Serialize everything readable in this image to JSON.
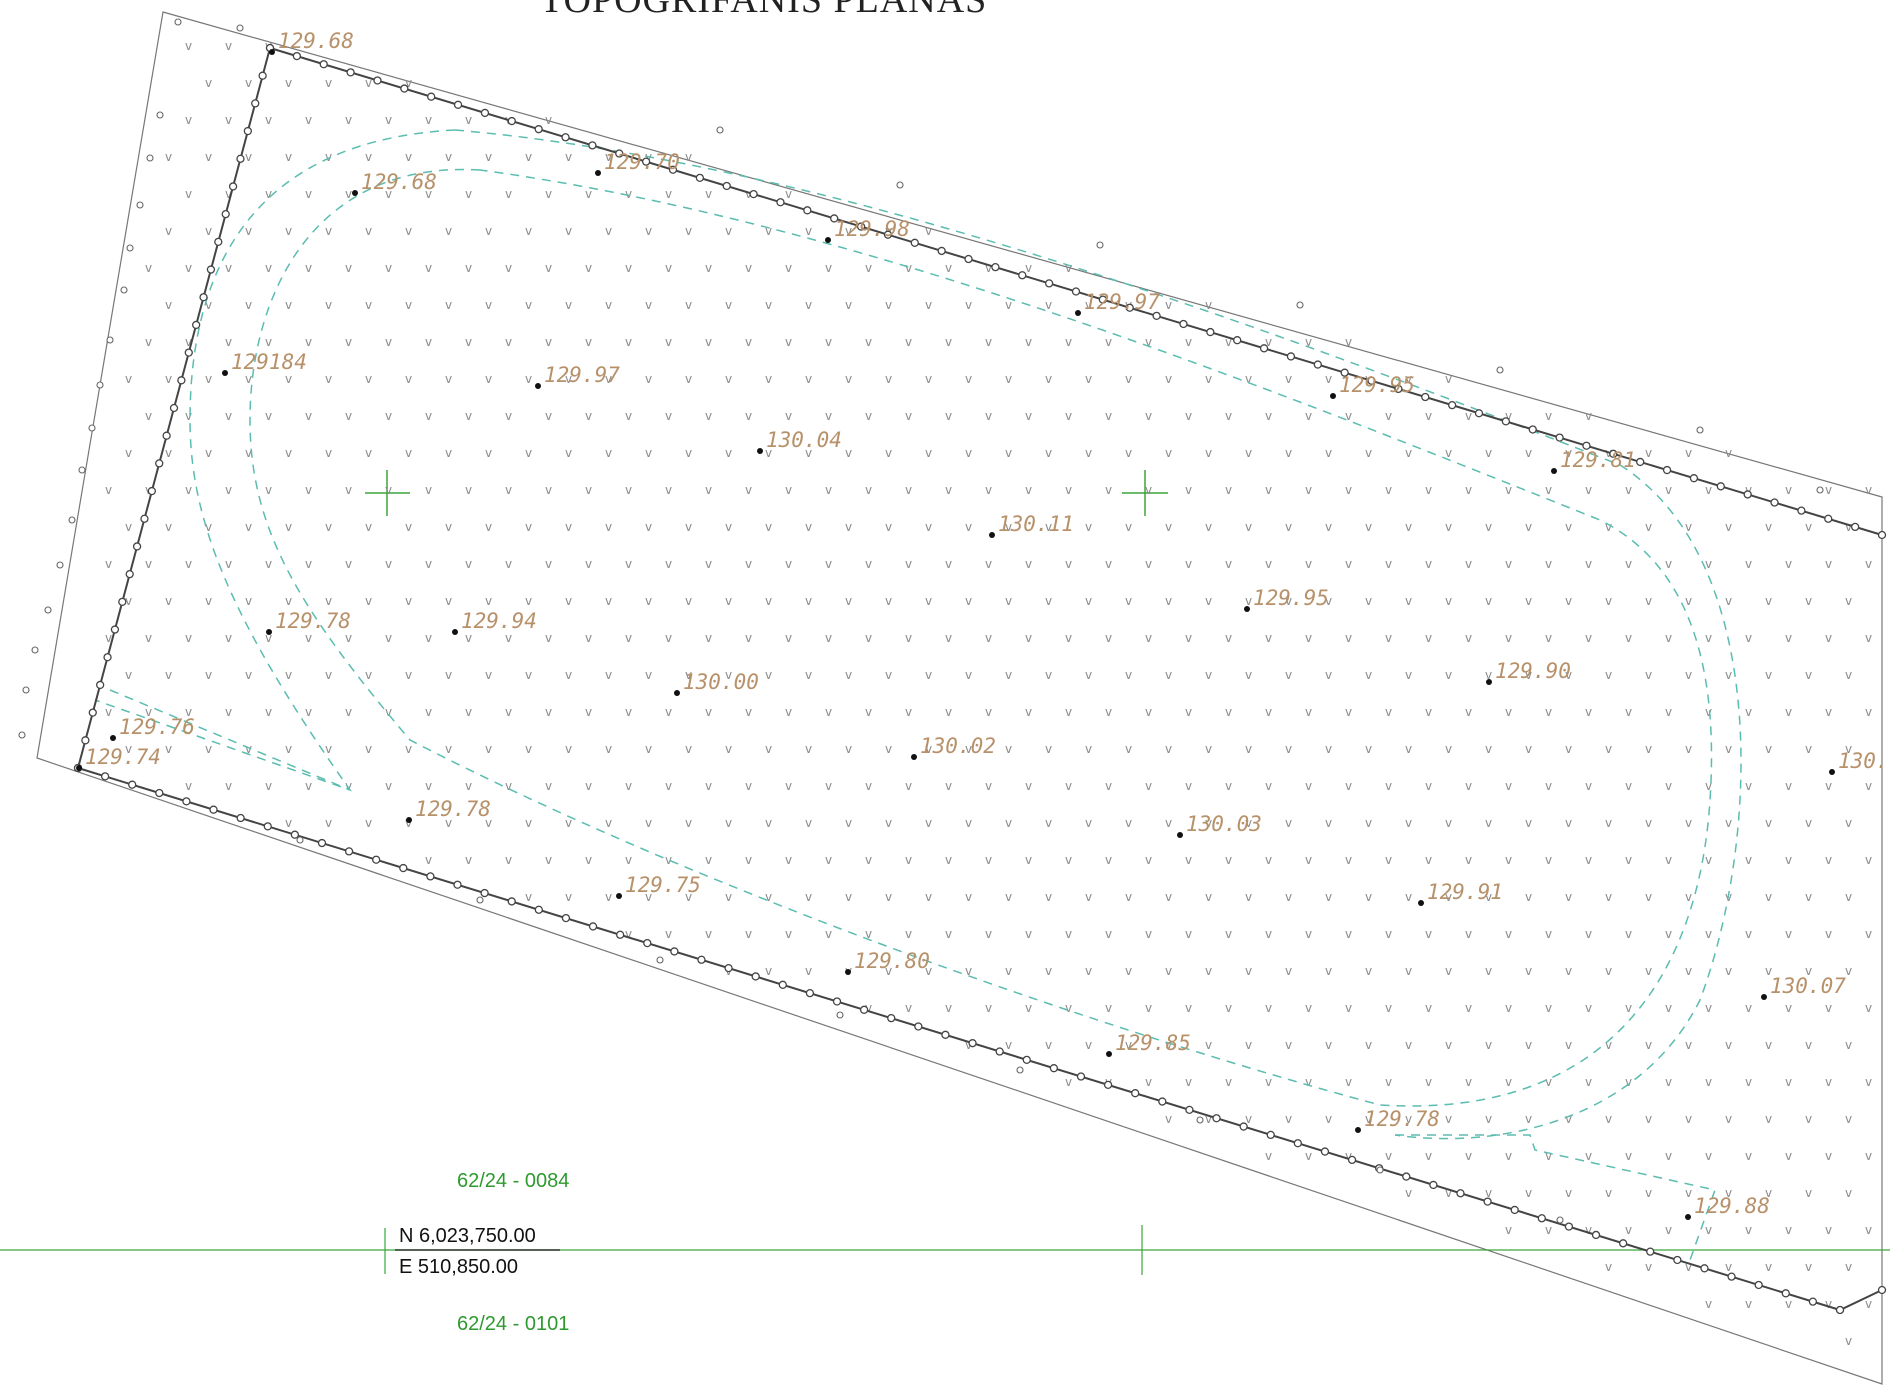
{
  "title": "TOPOGRIFANIS PLANAS",
  "colors": {
    "boundary": "#444444",
    "contour": "#5bbcb0",
    "grid": "#3aa63a",
    "elevation_text": "#b7916a",
    "sheet_text": "#2e9a2e"
  },
  "elevations": [
    {
      "label": "129.68"
    },
    {
      "label": "129.70"
    },
    {
      "label": "129.68"
    },
    {
      "label": "129.98"
    },
    {
      "label": "129.97"
    },
    {
      "label": "129184"
    },
    {
      "label": "129.97"
    },
    {
      "label": "129.95"
    },
    {
      "label": "130.04"
    },
    {
      "label": "129.81"
    },
    {
      "label": "130.11"
    },
    {
      "label": "129.95"
    },
    {
      "label": "129.78"
    },
    {
      "label": "129.94"
    },
    {
      "label": "130.00"
    },
    {
      "label": "129.90"
    },
    {
      "label": "129.76"
    },
    {
      "label": "129.74"
    },
    {
      "label": "130.02"
    },
    {
      "label": "130."
    },
    {
      "label": "129.78"
    },
    {
      "label": "130.03"
    },
    {
      "label": "129.75"
    },
    {
      "label": "129.91"
    },
    {
      "label": "129.80"
    },
    {
      "label": "130.07"
    },
    {
      "label": "129.85"
    },
    {
      "label": "129.78"
    },
    {
      "label": "129.88"
    }
  ],
  "sheet_labels": {
    "north": "62/24 - 0084",
    "south": "62/24 - 0101"
  },
  "grid_coordinates": {
    "northing": "N 6,023,750.00",
    "easting": "E 510,850.00"
  }
}
